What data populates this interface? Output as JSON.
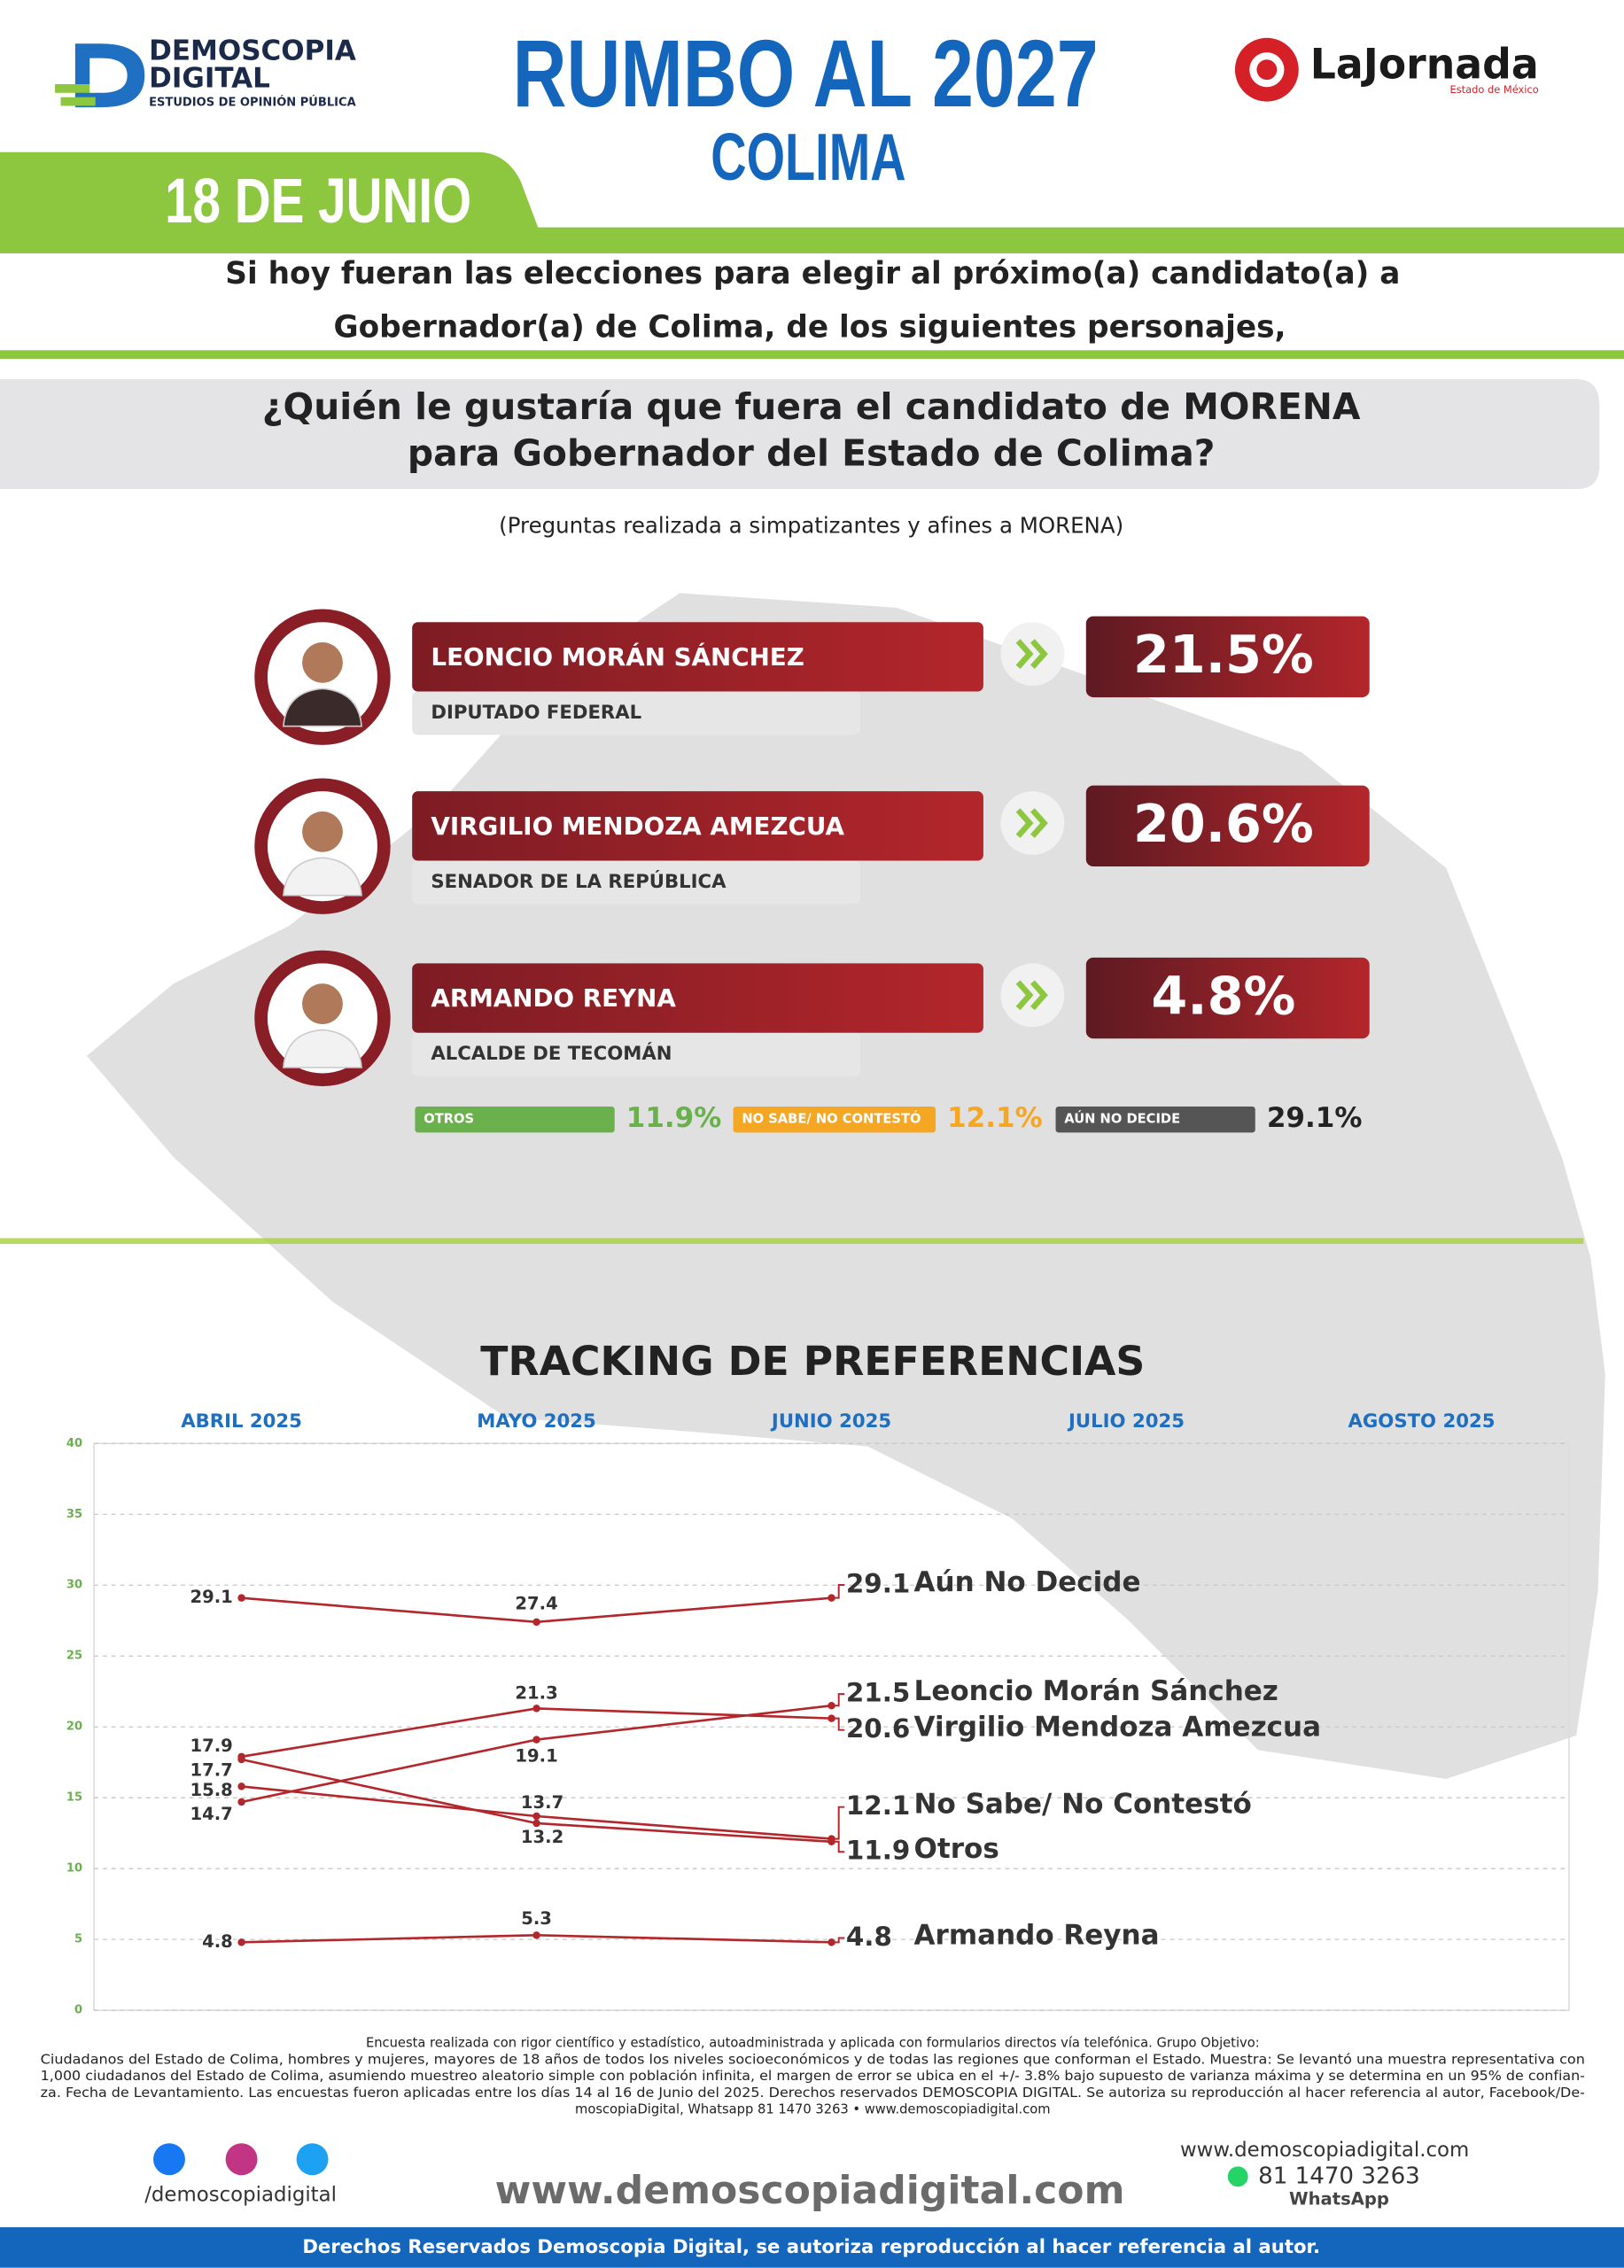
{
  "header": {
    "brand": "DEMOSCOPIA",
    "brand2": "DIGITAL",
    "brand_tagline": "ESTUDIOS DE OPINIÓN PÚBLICA",
    "title": "RUMBO AL 2027",
    "subtitle": "COLIMA",
    "partner": "LaJornada",
    "partner_tagline": "Estado de México",
    "date": "18 DE JUNIO"
  },
  "intro": [
    "Si hoy fueran las elecciones para elegir al próximo(a) candidato(a) a",
    "Gobernador(a) de Colima, de los siguientes personajes,"
  ],
  "question": [
    "¿Quién le gustaría que fuera el candidato de MORENA",
    "para Gobernador del Estado de Colima?"
  ],
  "note": "(Preguntas realizada a simpatizantes y afines a MORENA)",
  "candidates": [
    {
      "name": "LEONCIO MORÁN SÁNCHEZ",
      "role": "DIPUTADO FEDERAL",
      "percent": "21.5%"
    },
    {
      "name": "VIRGILIO MENDOZA AMEZCUA",
      "role": "SENADOR DE LA REPÚBLICA",
      "percent": "20.6%"
    },
    {
      "name": "ARMANDO REYNA",
      "role": "ALCALDE DE TECOMÁN",
      "percent": "4.8%"
    }
  ],
  "others": [
    {
      "label": "OTROS",
      "percent": "11.9%",
      "color": "#6ab04c"
    },
    {
      "label": "NO SABE/ NO CONTESTÓ",
      "percent": "12.1%",
      "color": "#f5a623"
    },
    {
      "label": "AÚN NO DECIDE",
      "percent": "29.1%",
      "color": "#555555"
    }
  ],
  "chart_data": {
    "type": "line",
    "title": "TRACKING DE PREFERENCIAS",
    "categories": [
      "ABRIL 2025",
      "MAYO 2025",
      "JUNIO 2025",
      "JULIO 2025",
      "AGOSTO 2025"
    ],
    "ylim": [
      0,
      40
    ],
    "yticks": [
      0,
      5,
      10,
      15,
      20,
      25,
      30,
      35,
      40
    ],
    "grid": true,
    "series": [
      {
        "name": "Aún No Decide",
        "color": "#b3262b",
        "values": [
          29.1,
          27.4,
          29.1,
          null,
          null
        ]
      },
      {
        "name": "Leoncio Morán Sánchez",
        "color": "#b3262b",
        "values": [
          14.7,
          19.1,
          21.5,
          null,
          null
        ]
      },
      {
        "name": "Virgilio Mendoza Amezcua",
        "color": "#b3262b",
        "values": [
          17.9,
          21.3,
          20.6,
          null,
          null
        ]
      },
      {
        "name": "No Sabe/ No Contestó",
        "color": "#b3262b",
        "values": [
          15.8,
          13.7,
          12.1,
          null,
          null
        ]
      },
      {
        "name": "Otros",
        "color": "#b3262b",
        "values": [
          17.7,
          13.2,
          11.9,
          null,
          null
        ]
      },
      {
        "name": "Armando Reyna",
        "color": "#b3262b",
        "values": [
          4.8,
          5.3,
          4.8,
          null,
          null
        ]
      }
    ]
  },
  "footer": {
    "methodology": [
      "Encuesta realizada con rigor científico y estadístico, autoadministrada y aplicada con formularios directos vía telefónica. Grupo Objetivo:",
      "Ciudadanos del Estado de Colima, hombres y mujeres, mayores de 18 años de todos los niveles socioeconómicos y de todas las regiones que conforman el Estado. Muestra: Se levantó una muestra representativa con",
      "1,000 ciudadanos del Estado de Colima, asumiendo muestreo aleatorio simple con población infinita, el margen de error se ubica en el +/- 3.8% bajo supuesto de varianza máxima y se determina en un 95% de confian-",
      "za. Fecha de Levantamiento. Las encuestas fueron aplicadas entre los días 14 al 16 de Junio del 2025. Derechos reservados DEMOSCOPIA DIGITAL. Se autoriza su reproducción al hacer referencia al autor, Facebook/De-",
      "moscopiaDigital, Whatsapp 81 1470 3263 • www.demoscopiadigital.com"
    ],
    "social": "/demoscopiadigital",
    "website": "www.demoscopiadigital.com",
    "website_small": "www.demoscopiadigital.com",
    "phone": "81 1470 3263",
    "whatsapp": "WhatsApp",
    "rights": "Derechos Reservados Demoscopia Digital, se autoriza reproducción al hacer referencia al autor."
  }
}
